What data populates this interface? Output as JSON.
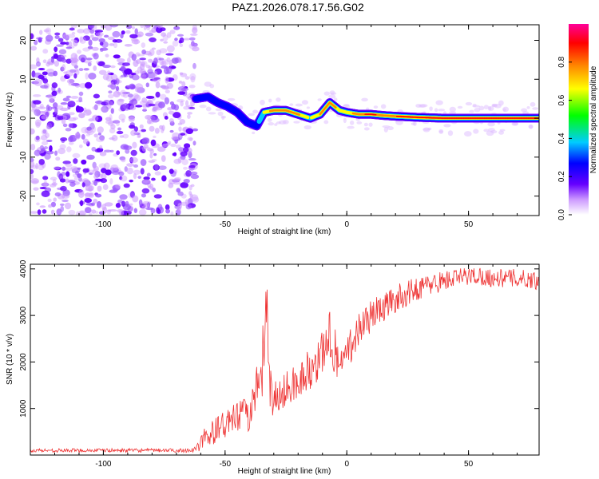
{
  "title": "PAZ1.2026.078.17.56.G02",
  "chart_data": [
    {
      "type": "heatmap",
      "xlabel": "Height of straight line (km)",
      "ylabel": "Frequency (Hz)",
      "xlim": [
        -130,
        79
      ],
      "ylim": [
        -25,
        24
      ],
      "xticks": [
        -100,
        -50,
        0,
        50
      ],
      "xtick_labels": [
        "-100",
        "-50",
        "0",
        "50"
      ],
      "yticks": [
        -20,
        -10,
        0,
        10,
        20
      ],
      "ytick_labels": [
        "-20",
        "-10",
        "0",
        "10",
        "20"
      ],
      "noise_region_x": [
        -130,
        -62
      ],
      "ridge": {
        "x": [
          -62,
          -57,
          -53,
          -49,
          -45,
          -41,
          -37,
          -34,
          -30,
          -25,
          -20,
          -15,
          -11,
          -7,
          -3,
          0,
          5,
          10,
          15,
          20,
          30,
          40,
          50,
          60,
          70,
          79
        ],
        "freq": [
          5,
          5.5,
          4,
          3,
          1.5,
          -1,
          -2,
          1.5,
          2,
          2,
          1,
          0,
          1,
          4,
          2,
          1.5,
          1,
          1,
          0.7,
          0.5,
          0.2,
          0,
          0,
          0,
          0,
          0
        ],
        "amplitude": [
          0.25,
          0.3,
          0.3,
          0.3,
          0.3,
          0.25,
          0.25,
          0.5,
          0.75,
          0.8,
          0.7,
          0.5,
          0.65,
          0.8,
          0.6,
          0.55,
          0.75,
          0.85,
          0.75,
          0.8,
          0.92,
          0.95,
          0.95,
          0.95,
          0.95,
          0.95
        ]
      },
      "colorbar": {
        "label": "Normalized spectral amplitude",
        "ticks": [
          0.0,
          0.2,
          0.4,
          0.6,
          0.8
        ],
        "tick_labels": [
          "0.0",
          "0.2",
          "0.4",
          "0.6",
          "0.8"
        ],
        "range": [
          0,
          1
        ],
        "colors": [
          "#ffffff",
          "#cc99ff",
          "#6600ff",
          "#0000ff",
          "#00ccff",
          "#00ff00",
          "#ffff00",
          "#ff8800",
          "#ff0000",
          "#ff0099"
        ]
      }
    },
    {
      "type": "line",
      "xlabel": "Height of straight line (km)",
      "ylabel": "SNR (10 * v/v)",
      "xlim": [
        -130,
        79
      ],
      "ylim": [
        0,
        4100
      ],
      "xticks": [
        -100,
        -50,
        0,
        50
      ],
      "xtick_labels": [
        "-100",
        "-50",
        "0",
        "50"
      ],
      "yticks": [
        1000,
        2000,
        3000,
        4000
      ],
      "ytick_labels": [
        "1000",
        "2000",
        "3000",
        "4000"
      ],
      "line_color": "#ee3333",
      "series": [
        {
          "name": "SNR",
          "x": [
            -130,
            -120,
            -110,
            -100,
            -90,
            -80,
            -70,
            -62,
            -58,
            -50,
            -45,
            -40,
            -36,
            -34,
            -33,
            -32,
            -30,
            -25,
            -20,
            -15,
            -10,
            -7,
            -5,
            0,
            5,
            10,
            20,
            30,
            40,
            50,
            55,
            60,
            70,
            79
          ],
          "y": [
            100,
            100,
            100,
            100,
            100,
            100,
            100,
            110,
            400,
            650,
            800,
            900,
            1400,
            2200,
            3000,
            1500,
            1200,
            1400,
            1600,
            1800,
            2200,
            2600,
            2000,
            2200,
            2700,
            3000,
            3350,
            3600,
            3750,
            3850,
            3850,
            3800,
            3800,
            3750
          ],
          "noise_amplitude": [
            40,
            40,
            40,
            40,
            40,
            40,
            40,
            60,
            250,
            300,
            350,
            400,
            700,
            900,
            700,
            600,
            400,
            400,
            400,
            400,
            500,
            500,
            400,
            400,
            400,
            350,
            300,
            250,
            220,
            200,
            200,
            200,
            200,
            200
          ]
        }
      ]
    }
  ]
}
